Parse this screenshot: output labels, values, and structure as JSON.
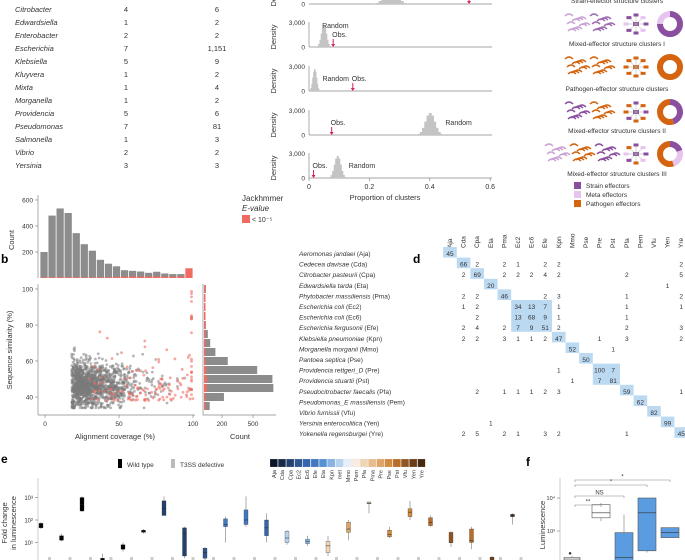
{
  "panel_a_table": {
    "rows": [
      {
        "genus": "Citrobacter",
        "c1": "4",
        "c2": "6"
      },
      {
        "genus": "Edwardsiella",
        "c1": "1",
        "c2": "2"
      },
      {
        "genus": "Enterobacter",
        "c1": "2",
        "c2": "2"
      },
      {
        "genus": "Escherichia",
        "c1": "7",
        "c2": "1,151"
      },
      {
        "genus": "Klebsiella",
        "c1": "5",
        "c2": "9"
      },
      {
        "genus": "Kluyvera",
        "c1": "1",
        "c2": "2"
      },
      {
        "genus": "Mixta",
        "c1": "1",
        "c2": "4"
      },
      {
        "genus": "Morganella",
        "c1": "1",
        "c2": "2"
      },
      {
        "genus": "Providencia",
        "c1": "5",
        "c2": "6"
      },
      {
        "genus": "Pseudomonas",
        "c1": "7",
        "c2": "81"
      },
      {
        "genus": "Salmonella",
        "c1": "1",
        "c2": "3"
      },
      {
        "genus": "Vibrio",
        "c1": "2",
        "c2": "2"
      },
      {
        "genus": "Yersinia",
        "c1": "3",
        "c2": "3"
      }
    ]
  },
  "panel_labels": {
    "b": "b",
    "d": "d",
    "e": "e",
    "f": "f"
  },
  "chart_data": [
    {
      "type": "bar",
      "panel": "b-top",
      "ylabel": "Count",
      "yticks": [
        "200",
        "400",
        "600"
      ],
      "ylim": [
        0,
        650
      ],
      "values": [
        200,
        480,
        535,
        500,
        345,
        260,
        210,
        140,
        110,
        90,
        60,
        55,
        50,
        40,
        48,
        35,
        30,
        30
      ],
      "red_values": [
        5,
        5,
        6,
        6,
        5,
        5,
        5,
        5,
        6,
        8,
        10,
        12,
        10,
        12,
        12,
        10,
        10,
        12
      ],
      "last_bin_red": 75,
      "legend": {
        "title_1": "Jackhmmer",
        "title_2": "E-value",
        "entry": "< 10⁻⁵",
        "color": "#f26b63"
      }
    },
    {
      "type": "scatter",
      "panel": "b-main",
      "xlabel": "Alignment coverage (%)",
      "ylabel": "Sequence similarity (%)",
      "xticks": [
        "0",
        "50",
        "100"
      ],
      "yticks": [
        "40",
        "60",
        "80",
        "100"
      ],
      "xlim": [
        -5,
        100
      ],
      "ylim": [
        33,
        100
      ],
      "series_colors": {
        "grey": "#7a7a7a",
        "significant": "#f26b63"
      }
    },
    {
      "type": "bar",
      "panel": "b-right",
      "orientation": "horizontal",
      "xlabel": "Count",
      "xticks": [
        "200",
        "500"
      ],
      "bin_centers": [
        35,
        40,
        45,
        50,
        55,
        60,
        65,
        70,
        75,
        80,
        85,
        90,
        95,
        100
      ],
      "values": [
        60,
        210,
        730,
        720,
        560,
        250,
        120,
        65,
        40,
        20,
        15,
        10,
        10,
        20
      ],
      "red_values": [
        5,
        10,
        30,
        30,
        25,
        15,
        10,
        8,
        6,
        5,
        4,
        4,
        4,
        15
      ]
    },
    {
      "type": "area",
      "panel": "c",
      "xlabel": "Proportion of clusters",
      "ylabel": "Density",
      "ytick_top": "3,000",
      "ytick_bottom": "0",
      "xticks": [
        "0",
        "0.2",
        "0.4",
        "0.6"
      ],
      "xlim": [
        0,
        0.6
      ],
      "random_label": "Random",
      "obs_label": "Obs.",
      "panels": [
        {
          "random_mean": 0.27,
          "random_sd": 0.018,
          "obs": 0.53,
          "show_labels": false
        },
        {
          "random_mean": 0.05,
          "random_sd": 0.008,
          "obs": 0.08,
          "show_labels": true
        },
        {
          "random_mean": 0.02,
          "random_sd": 0.006,
          "obs": 0.145,
          "show_labels": true
        },
        {
          "random_mean": 0.4,
          "random_sd": 0.015,
          "obs": 0.075,
          "show_labels": true
        },
        {
          "random_mean": 0.095,
          "random_sd": 0.01,
          "obs": 0.015,
          "show_labels": true
        }
      ]
    },
    {
      "type": "table",
      "panel": "d",
      "columns": [
        "Aja",
        "Cda",
        "Cpa",
        "Eta",
        "Pma",
        "Ec2",
        "Ec6",
        "Efe",
        "Kpn",
        "Mmo",
        "Pse",
        "Pre",
        "Pst",
        "Pfa",
        "Pem",
        "Vfu",
        "Yen",
        "Yre"
      ],
      "rows": [
        {
          "label": "Aeromonas jandaei",
          "abbr": " (Aja)",
          "cells": {
            "Aja": "45"
          }
        },
        {
          "label": "Cedecea davisae",
          "abbr": " (Cda)",
          "cells": {
            "Cda": "66",
            "Cpa": "2",
            "Pma": "2",
            "Ec2": "1",
            "Efe": "2",
            "Kpn": "2",
            "Yre": "2"
          }
        },
        {
          "label": "Citrobacter pasteurii",
          "abbr": " (Cpa)",
          "cells": {
            "Cda": "2",
            "Cpa": "69",
            "Pma": "2",
            "Ec2": "2",
            "Ec6": "2",
            "Efe": "4",
            "Kpn": "2",
            "Pfa": "2",
            "Yre": "5"
          }
        },
        {
          "label": "Edwardsiella tarda",
          "abbr": " (Eta)",
          "cells": {
            "Eta": "20",
            "Yen": "1"
          }
        },
        {
          "label": "Phytobacter massiliensis",
          "abbr": " (Pma)",
          "cells": {
            "Cda": "2",
            "Cpa": "2",
            "Pma": "46",
            "Efe": "2",
            "Kpn": "3",
            "Pfa": "1",
            "Yre": "2"
          }
        },
        {
          "label": "Escherichia coli",
          "abbr": " (Ec2)",
          "cells": {
            "Cda": "1",
            "Cpa": "2",
            "Ec2": "34",
            "Ec6": "13",
            "Efe": "7",
            "Kpn": "1",
            "Pfa": "1",
            "Yre": "1"
          }
        },
        {
          "label": "Escherichia coli",
          "abbr": " (Ec6)",
          "cells": {
            "Cpa": "2",
            "Ec2": "13",
            "Ec6": "68",
            "Efe": "9",
            "Kpn": "1",
            "Pfa": "1"
          }
        },
        {
          "label": "Escherichia fergusonii",
          "abbr": " (Efe)",
          "cells": {
            "Cda": "2",
            "Cpa": "4",
            "Pma": "2",
            "Ec2": "7",
            "Ec6": "9",
            "Efe": "51",
            "Kpn": "2",
            "Pfa": "2",
            "Yre": "3"
          }
        },
        {
          "label": "Klebsiella pneumoniae",
          "abbr": " (Kpn)",
          "cells": {
            "Cda": "2",
            "Cpa": "2",
            "Pma": "3",
            "Ec2": "1",
            "Ec6": "1",
            "Efe": "2",
            "Kpn": "47",
            "Pre": "1",
            "Pfa": "3",
            "Yre": "2"
          }
        },
        {
          "label": "Morganella morganii",
          "abbr": " (Mmo)",
          "cells": {
            "Mmo": "52",
            "Pst": "1"
          }
        },
        {
          "label": "Pantoea septica",
          "abbr": " (Pse)",
          "cells": {
            "Pse": "50"
          }
        },
        {
          "label": "Providencia rettgeri_D",
          "abbr": " (Pre)",
          "cells": {
            "Kpn": "1",
            "Pre": "100",
            "Pst": "7"
          }
        },
        {
          "label": "Providencia stuartii",
          "abbr": " (Pst)",
          "cells": {
            "Mmo": "1",
            "Pre": "7",
            "Pst": "81"
          }
        },
        {
          "label": "Pseudocitrobacter faecalis",
          "abbr": " (Pfa)",
          "cells": {
            "Cpa": "2",
            "Pma": "1",
            "Ec2": "1",
            "Ec6": "1",
            "Efe": "2",
            "Kpn": "3",
            "Pfa": "59",
            "Yre": "1"
          }
        },
        {
          "label": "Pseudomonas_E massiliensis",
          "abbr": " (Pem)",
          "cells": {
            "Pem": "62"
          }
        },
        {
          "label": "Vibrio furnissii",
          "abbr": " (Vfu)",
          "cells": {
            "Vfu": "82"
          }
        },
        {
          "label": "Yersinia enterocolitica",
          "abbr": " (Yen)",
          "cells": {
            "Eta": "1",
            "Yen": "99"
          }
        },
        {
          "label": "Yokenella regensburgei",
          "abbr": " (Yre)",
          "cells": {
            "Cda": "2",
            "Cpa": "5",
            "Pma": "2",
            "Ec2": "1",
            "Efe": "3",
            "Kpn": "2",
            "Pfa": "1",
            "Yre": "45"
          }
        }
      ],
      "highlight_color": "#bcd9f2"
    },
    {
      "type": "box",
      "panel": "e",
      "ylabel_1": "Fold change",
      "ylabel_2": "in luminescence",
      "yticks": [
        "10¹",
        "10²",
        "10³"
      ],
      "legend": {
        "wild_type": "Wild type",
        "t3ss": "T3SS defective"
      },
      "colorbar": [
        {
          "abbr": "Aja",
          "color": "#0c1626"
        },
        {
          "abbr": "Cda",
          "color": "#172a4a"
        },
        {
          "abbr": "Cpa",
          "color": "#23406f"
        },
        {
          "abbr": "Ec2",
          "color": "#2c5791"
        },
        {
          "abbr": "Ec6",
          "color": "#3566ad"
        },
        {
          "abbr": "Efe",
          "color": "#4379c2"
        },
        {
          "abbr": "Eta",
          "color": "#5791d1"
        },
        {
          "abbr": "Kpn",
          "color": "#86b3e3"
        },
        {
          "abbr": "met",
          "color": "#b7d3ef"
        },
        {
          "abbr": "Mmo",
          "color": "#e7f0f9"
        },
        {
          "abbr": "Pem",
          "color": "#f8ede1"
        },
        {
          "abbr": "Pfa",
          "color": "#f1d6b6"
        },
        {
          "abbr": "Pma",
          "color": "#e7bd8d"
        },
        {
          "abbr": "Pre",
          "color": "#dea468"
        },
        {
          "abbr": "Pse",
          "color": "#d48a3f"
        },
        {
          "abbr": "Pst",
          "color": "#b86e29"
        },
        {
          "abbr": "Vfu",
          "color": "#925520"
        },
        {
          "abbr": "Yen",
          "color": "#6b3e17"
        },
        {
          "abbr": "Yre",
          "color": "#47290f"
        }
      ],
      "boxes": [
        {
          "color": "#000000",
          "q1": 1.65,
          "med": 1.75,
          "q3": 1.85,
          "min": 1.6,
          "max": 1.9
        },
        {
          "color": "#000000",
          "q1": 1.1,
          "med": 1.2,
          "q3": 1.3,
          "min": 1.05,
          "max": 1.4
        },
        {
          "color": "#000000",
          "q1": 2.4,
          "med": 2.7,
          "q3": 3.0,
          "min": 2.35,
          "max": 3.05
        },
        {
          "color": "#000000",
          "q1": 0.1,
          "med": 0.2,
          "q3": 0.3,
          "min": 0.0,
          "max": 0.5
        },
        {
          "color": "#000000",
          "q1": 0.7,
          "med": 0.8,
          "q3": 0.9,
          "min": 0.6,
          "max": 1.0
        },
        {
          "color": "#000000",
          "q1": 1.45,
          "med": 1.5,
          "q3": 1.55,
          "min": 1.4,
          "max": 1.6
        },
        {
          "color": "#23406f",
          "q1": 2.2,
          "med": 2.5,
          "q3": 2.85,
          "min": 2.2,
          "max": 3.05
        },
        {
          "color": "#23406f",
          "q1": 0.4,
          "med": 1.4,
          "q3": 1.65,
          "min": 0.3,
          "max": 1.7
        },
        {
          "color": "#2c5791",
          "q1": 0.3,
          "med": 0.55,
          "q3": 0.75,
          "min": 0.2,
          "max": 0.8
        },
        {
          "color": "#4379c2",
          "q1": 1.7,
          "med": 1.8,
          "q3": 2.05,
          "min": 1.0,
          "max": 2.15
        },
        {
          "color": "#4379c2",
          "q1": 1.8,
          "med": 2.0,
          "q3": 2.45,
          "min": 1.7,
          "max": 3.05
        },
        {
          "color": "#3566ad",
          "q1": 1.3,
          "med": 1.65,
          "q3": 2.0,
          "min": 1.0,
          "max": 2.3
        },
        {
          "color": "#b7d3ef",
          "q1": 1.0,
          "med": 1.2,
          "q3": 1.5,
          "min": 0.9,
          "max": 1.55
        },
        {
          "color": "#86b3e3",
          "q1": 0.95,
          "med": 1.05,
          "q3": 1.15,
          "min": 0.85,
          "max": 1.3
        },
        {
          "color": "#f1d6b6",
          "q1": 0.55,
          "med": 0.85,
          "q3": 1.05,
          "min": 0.4,
          "max": 1.3
        },
        {
          "color": "#dea468",
          "q1": 1.45,
          "med": 1.6,
          "q3": 1.9,
          "min": 1.1,
          "max": 2.0
        },
        {
          "color": "#f1d6b6",
          "q1": 2.72,
          "med": 2.75,
          "q3": 2.8,
          "min": 2.3,
          "max": 2.82
        },
        {
          "color": "#d48a3f",
          "q1": 1.25,
          "med": 1.35,
          "q3": 1.55,
          "min": 1.2,
          "max": 1.7
        },
        {
          "color": "#d48a3f",
          "q1": 2.15,
          "med": 2.35,
          "q3": 2.5,
          "min": 2.0,
          "max": 2.85
        },
        {
          "color": "#b86e29",
          "q1": 1.75,
          "med": 1.9,
          "q3": 2.1,
          "min": 1.7,
          "max": 2.2
        },
        {
          "color": "#925520",
          "q1": 1.0,
          "med": 1.0,
          "q3": 1.45,
          "min": 0.8,
          "max": 1.5
        },
        {
          "color": "#b86e29",
          "q1": 1.0,
          "med": 1.1,
          "q3": 1.6,
          "min": 0.7,
          "max": 1.7
        },
        {
          "color": "#6b3e17",
          "q1": 0.1,
          "med": 0.2,
          "q3": 0.35,
          "min": 0.05,
          "max": 0.4
        },
        {
          "color": "#47290f",
          "q1": 2.15,
          "med": 2.2,
          "q3": 2.25,
          "min": 1.8,
          "max": 2.3
        }
      ]
    },
    {
      "type": "box",
      "panel": "f",
      "ylabel": "Luminescence",
      "yticks": [
        "10³",
        "10⁴"
      ],
      "boxes": [
        {
          "color": "#ffffff",
          "q1": 2.1,
          "med": 2.15,
          "q3": 2.2,
          "min": 2.05,
          "max": 2.25
        },
        {
          "color": "#ffffff",
          "q1": 3.4,
          "med": 3.55,
          "q3": 3.8,
          "min": 3.3,
          "max": 3.85
        },
        {
          "color": "#5b9be0",
          "q1": 2.1,
          "med": 2.2,
          "q3": 2.95,
          "min": 2.1,
          "max": 3.5
        },
        {
          "color": "#5b9be0",
          "q1": 2.4,
          "med": 3.55,
          "q3": 4.0,
          "min": 2.35,
          "max": 4.0
        },
        {
          "color": "#5b9be0",
          "q1": 2.8,
          "med": 2.95,
          "q3": 3.1,
          "min": 2.8,
          "max": 3.1
        }
      ],
      "comparisons": [
        {
          "from": 0,
          "to": 1,
          "label": "**"
        },
        {
          "from": 0,
          "to": 2,
          "label": "NS"
        },
        {
          "from": 0,
          "to": 3,
          "label": "*"
        },
        {
          "from": 0,
          "to": 4,
          "label": "*"
        }
      ],
      "outlier_marker": "●"
    }
  ],
  "panel_clusters": {
    "titles": [
      "Strain-effector structure clusters",
      "Mixed-effector structure clusters I",
      "Pathogen-effector structure clusters",
      "Mixed-effector structure clusters II",
      "Mixed-effector structure clusters III"
    ],
    "donuts": [
      {
        "strain": 0.75,
        "meta": 0.25,
        "pathogen": 0
      },
      {
        "strain": 0,
        "meta": 0,
        "pathogen": 1
      },
      {
        "strain": 0.45,
        "meta": 0,
        "pathogen": 0.55
      },
      {
        "strain": 0.2,
        "meta": 0.25,
        "pathogen": 0.55
      }
    ],
    "legend": [
      {
        "label": "Strain effectors",
        "color": "#8a4f9e"
      },
      {
        "label": "Meta effectors",
        "color": "#e7c4ee"
      },
      {
        "label": "Pathogen effectors",
        "color": "#d4640f"
      }
    ]
  }
}
